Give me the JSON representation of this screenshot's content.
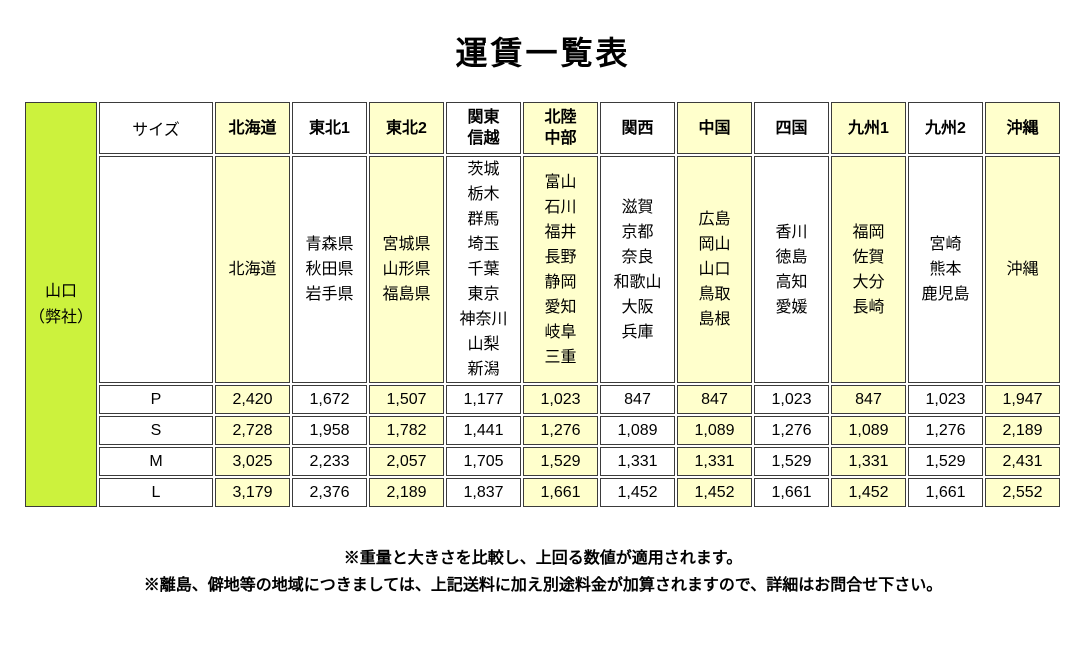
{
  "title": "運賃一覧表",
  "table": {
    "origin_label": "山口\n（弊社）",
    "size_header": "サイズ",
    "columns": [
      {
        "label": "北海道",
        "prefectures": "北海道",
        "highlight": true
      },
      {
        "label": "東北1",
        "prefectures": "青森県\n秋田県\n岩手県",
        "highlight": false
      },
      {
        "label": "東北2",
        "prefectures": "宮城県\n山形県\n福島県",
        "highlight": true
      },
      {
        "label": "関東\n信越",
        "prefectures": "茨城\n栃木\n群馬\n埼玉\n千葉\n東京\n神奈川\n山梨\n新潟",
        "highlight": false
      },
      {
        "label": "北陸\n中部",
        "prefectures": "富山\n石川\n福井\n長野\n静岡\n愛知\n岐阜\n三重",
        "highlight": true
      },
      {
        "label": "関西",
        "prefectures": "滋賀\n京都\n奈良\n和歌山\n大阪\n兵庫",
        "highlight": false
      },
      {
        "label": "中国",
        "prefectures": "広島\n岡山\n山口\n鳥取\n島根",
        "highlight": true
      },
      {
        "label": "四国",
        "prefectures": "香川\n徳島\n高知\n愛媛",
        "highlight": false
      },
      {
        "label": "九州1",
        "prefectures": "福岡\n佐賀\n大分\n長崎",
        "highlight": true
      },
      {
        "label": "九州2",
        "prefectures": "宮崎\n熊本\n鹿児島",
        "highlight": false
      },
      {
        "label": "沖縄",
        "prefectures": "沖縄",
        "highlight": true
      }
    ],
    "rows": [
      {
        "size": "P",
        "fares": [
          "2,420",
          "1,672",
          "1,507",
          "1,177",
          "1,023",
          "847",
          "847",
          "1,023",
          "847",
          "1,023",
          "1,947"
        ]
      },
      {
        "size": "S",
        "fares": [
          "2,728",
          "1,958",
          "1,782",
          "1,441",
          "1,276",
          "1,089",
          "1,089",
          "1,276",
          "1,089",
          "1,276",
          "2,189"
        ]
      },
      {
        "size": "M",
        "fares": [
          "3,025",
          "2,233",
          "2,057",
          "1,705",
          "1,529",
          "1,331",
          "1,331",
          "1,529",
          "1,331",
          "1,529",
          "2,431"
        ]
      },
      {
        "size": "L",
        "fares": [
          "3,179",
          "2,376",
          "2,189",
          "1,837",
          "1,661",
          "1,452",
          "1,452",
          "1,661",
          "1,452",
          "1,661",
          "2,552"
        ]
      }
    ]
  },
  "notes": [
    "※重量と大きさを比較し、上回る数値が適用されます。",
    "※離島、僻地等の地域につきましては、上記送料に加え別途料金が加算されますので、詳細はお問合せ下さい。"
  ],
  "colors": {
    "highlight_yellow": "#ffffcc",
    "origin_green": "#ccf23d",
    "border": "#3b3b3b"
  }
}
